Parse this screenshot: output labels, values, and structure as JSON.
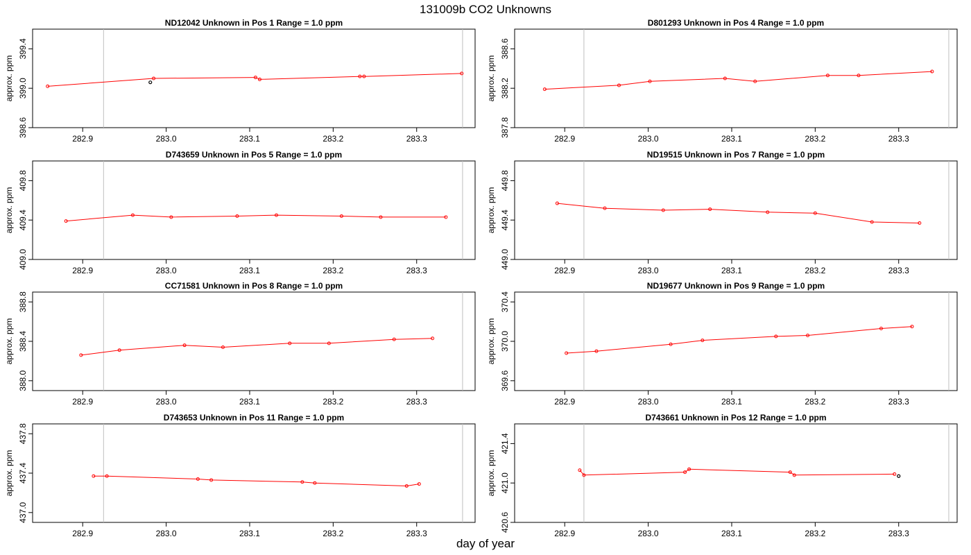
{
  "title": "131009b  CO2 Unknowns",
  "xlabel": "day of year",
  "colors": {
    "series": "#ff0000",
    "flagged": "#000000",
    "ref_line": "#bebebe"
  },
  "chart_data": [
    {
      "type": "line",
      "title": "ND12042    Unknown in Pos 1         Range = 1.0 ppm",
      "ylabel": "approx. ppm",
      "xlim": [
        282.84,
        283.37
      ],
      "ylim": [
        398.6,
        399.6
      ],
      "xticks": [
        "282.9",
        "283.0",
        "283.1",
        "283.2",
        "283.3"
      ],
      "yticks": [
        "398.6",
        "399.0",
        "399.4"
      ],
      "vlines": [
        282.925,
        283.355
      ],
      "x": [
        282.858,
        282.985,
        283.107,
        283.112,
        283.232,
        283.237,
        283.354
      ],
      "y": [
        399.02,
        399.1,
        399.11,
        399.09,
        399.12,
        399.12,
        399.15
      ],
      "flagged": [
        {
          "x": 282.981,
          "y": 399.06
        }
      ]
    },
    {
      "type": "line",
      "title": "D801293    Unknown in Pos 4         Range = 1.0 ppm",
      "ylabel": "approx. ppm",
      "xlim": [
        282.84,
        283.37
      ],
      "ylim": [
        387.8,
        388.8
      ],
      "xticks": [
        "282.9",
        "283.0",
        "283.1",
        "283.2",
        "283.3"
      ],
      "yticks": [
        "387.8",
        "388.2",
        "388.6"
      ],
      "vlines": [
        282.923,
        283.36
      ],
      "x": [
        282.876,
        282.965,
        283.002,
        283.092,
        283.128,
        283.215,
        283.252,
        283.34
      ],
      "y": [
        388.19,
        388.23,
        388.27,
        388.3,
        388.27,
        388.33,
        388.33,
        388.37
      ],
      "flagged": []
    },
    {
      "type": "line",
      "title": "D743659    Unknown in Pos 5         Range = 1.0 ppm",
      "ylabel": "approx. ppm",
      "xlim": [
        282.84,
        283.37
      ],
      "ylim": [
        409.0,
        410.0
      ],
      "xticks": [
        "282.9",
        "283.0",
        "283.1",
        "283.2",
        "283.3"
      ],
      "yticks": [
        "409.0",
        "409.4",
        "409.8"
      ],
      "vlines": [
        282.925,
        283.355
      ],
      "x": [
        282.88,
        282.96,
        283.006,
        283.085,
        283.132,
        283.21,
        283.257,
        283.335
      ],
      "y": [
        409.39,
        409.45,
        409.43,
        409.44,
        409.45,
        409.44,
        409.43,
        409.43
      ],
      "flagged": []
    },
    {
      "type": "line",
      "title": "ND19515    Unknown in Pos 7         Range = 1.0 ppm",
      "ylabel": "approx. ppm",
      "xlim": [
        282.84,
        283.37
      ],
      "ylim": [
        449.0,
        450.0
      ],
      "xticks": [
        "282.9",
        "283.0",
        "283.1",
        "283.2",
        "283.3"
      ],
      "yticks": [
        "449.0",
        "449.4",
        "449.8"
      ],
      "vlines": [
        282.923,
        283.36
      ],
      "x": [
        282.891,
        282.948,
        283.018,
        283.074,
        283.143,
        283.2,
        283.268,
        283.325
      ],
      "y": [
        449.57,
        449.52,
        449.5,
        449.51,
        449.48,
        449.47,
        449.38,
        449.37
      ],
      "flagged": []
    },
    {
      "type": "line",
      "title": "CC71581    Unknown in Pos 8         Range = 1.0 ppm",
      "ylabel": "approx. ppm",
      "xlim": [
        282.84,
        283.37
      ],
      "ylim": [
        387.9,
        388.9
      ],
      "xticks": [
        "282.9",
        "283.0",
        "283.1",
        "283.2",
        "283.3"
      ],
      "yticks": [
        "388.0",
        "388.4",
        "388.8"
      ],
      "vlines": [
        282.925,
        283.355
      ],
      "x": [
        282.898,
        282.944,
        283.022,
        283.068,
        283.148,
        283.195,
        283.273,
        283.319
      ],
      "y": [
        388.26,
        388.31,
        388.36,
        388.34,
        388.38,
        388.38,
        388.42,
        388.43
      ],
      "flagged": []
    },
    {
      "type": "line",
      "title": "ND19677    Unknown in Pos 9         Range = 1.0 ppm",
      "ylabel": "approx. ppm",
      "xlim": [
        282.84,
        283.37
      ],
      "ylim": [
        369.5,
        370.5
      ],
      "xticks": [
        "282.9",
        "283.0",
        "283.1",
        "283.2",
        "283.3"
      ],
      "yticks": [
        "369.6",
        "370.0",
        "370.4"
      ],
      "vlines": [
        282.923,
        283.36
      ],
      "x": [
        282.902,
        282.938,
        283.027,
        283.065,
        283.153,
        283.191,
        283.279,
        283.316
      ],
      "y": [
        369.88,
        369.9,
        369.97,
        370.01,
        370.05,
        370.06,
        370.13,
        370.15
      ],
      "flagged": []
    },
    {
      "type": "line",
      "title": "D743653    Unknown in Pos 11         Range = 1.0 ppm",
      "ylabel": "approx. ppm",
      "xlim": [
        282.84,
        283.37
      ],
      "ylim": [
        436.9,
        437.9
      ],
      "xticks": [
        "282.9",
        "283.0",
        "283.1",
        "283.2",
        "283.3"
      ],
      "yticks": [
        "437.0",
        "437.4",
        "437.8"
      ],
      "vlines": [
        282.925,
        283.355
      ],
      "x": [
        282.913,
        282.929,
        283.038,
        283.054,
        283.163,
        283.178,
        283.288,
        283.303
      ],
      "y": [
        437.37,
        437.37,
        437.34,
        437.33,
        437.31,
        437.3,
        437.27,
        437.29
      ],
      "flagged": []
    },
    {
      "type": "line",
      "title": "D743661    Unknown in Pos 12         Range = 1.0 ppm",
      "ylabel": "approx. ppm",
      "xlim": [
        282.84,
        283.37
      ],
      "ylim": [
        420.6,
        421.6
      ],
      "xticks": [
        "282.9",
        "283.0",
        "283.1",
        "283.2",
        "283.3"
      ],
      "yticks": [
        "420.6",
        "421.0",
        "421.4"
      ],
      "vlines": [
        282.923,
        283.36
      ],
      "x": [
        282.918,
        282.923,
        283.044,
        283.049,
        283.17,
        283.175,
        283.295
      ],
      "y": [
        421.13,
        421.08,
        421.11,
        421.14,
        421.11,
        421.08,
        421.09
      ],
      "flagged": [
        {
          "x": 283.3,
          "y": 421.07
        }
      ]
    }
  ]
}
